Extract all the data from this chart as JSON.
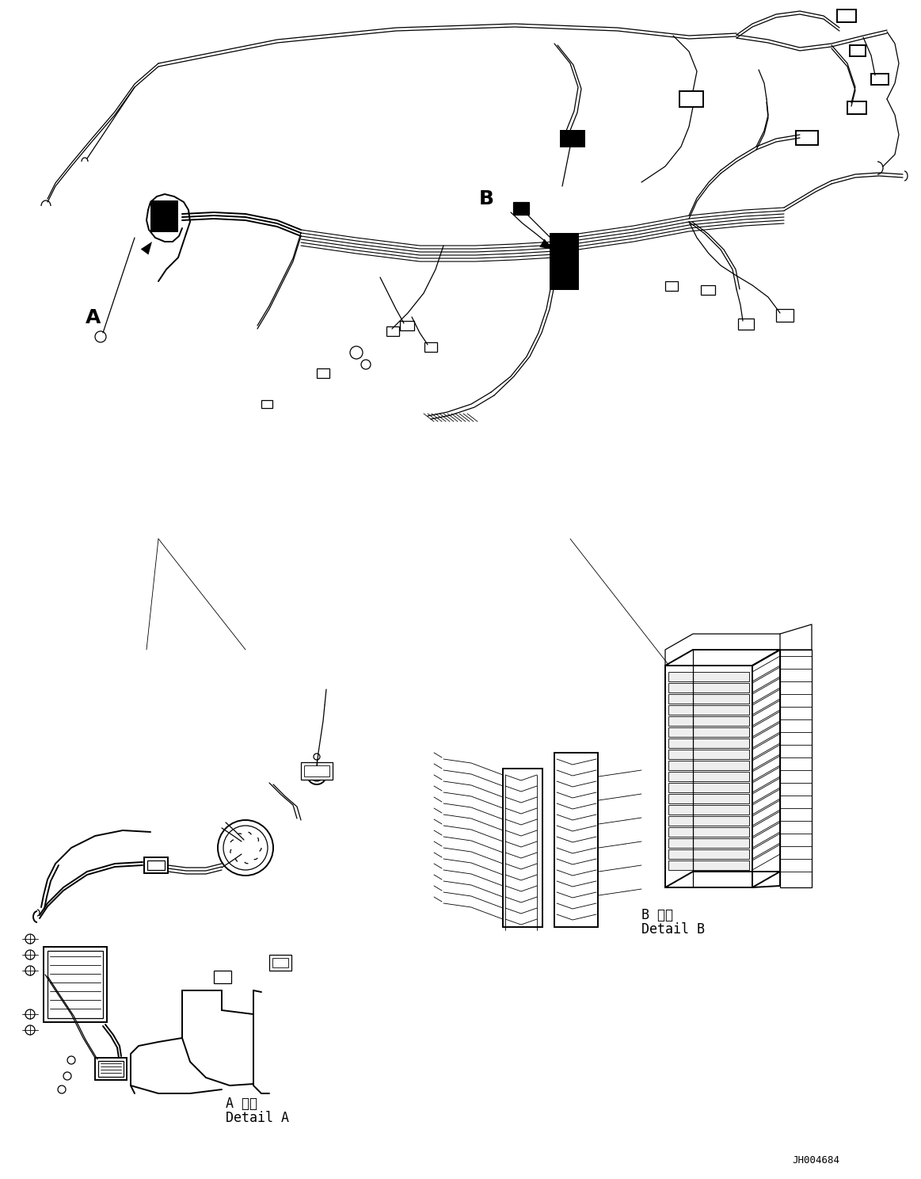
{
  "bg_color": "#ffffff",
  "line_color": "#000000",
  "fig_width": 11.63,
  "fig_height": 14.88,
  "dpi": 100,
  "part_id": "JH004684",
  "label_a": "A",
  "label_b": "B",
  "detail_a_jp": "A 詳細",
  "detail_a_en": "Detail A",
  "detail_b_jp": "B 詳細",
  "detail_b_en": "Detail B",
  "font_size_labels": 18,
  "font_size_detail": 12,
  "font_size_partid": 9
}
